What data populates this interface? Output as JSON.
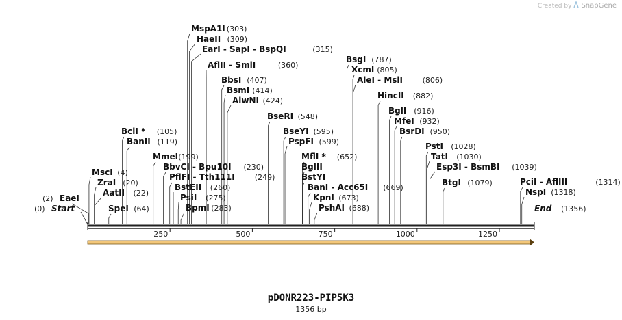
{
  "watermark": {
    "prefix": "Created by",
    "brand": "SnapGene"
  },
  "map": {
    "title": "pDONR223-PIP5K3",
    "size_label": "1356 bp",
    "length": 1356,
    "axis_ticks": [
      "250",
      "500",
      "750",
      "1000",
      "1250"
    ],
    "axis_tick_values": [
      250,
      500,
      750,
      1000,
      1250
    ],
    "arrow_color": "#f3c77a",
    "sites": [
      {
        "name": "MspA1I",
        "pos": 303,
        "pos_label": "(303)"
      },
      {
        "name": "HaeII",
        "pos": 309,
        "pos_label": "(309)"
      },
      {
        "name": "EarI  - SapI  - BspQI",
        "pos": 315,
        "pos_label": "(315)"
      },
      {
        "name": "AflII  - SmlI",
        "pos": 360,
        "pos_label": "(360)"
      },
      {
        "name": "BbsI",
        "pos": 407,
        "pos_label": "(407)"
      },
      {
        "name": "BsmI",
        "pos": 414,
        "pos_label": "(414)"
      },
      {
        "name": "AlwNI",
        "pos": 424,
        "pos_label": "(424)"
      },
      {
        "name": "BseRI",
        "pos": 548,
        "pos_label": "(548)"
      },
      {
        "name": "BclI *",
        "pos": 105,
        "pos_label": "(105)"
      },
      {
        "name": "BanII",
        "pos": 119,
        "pos_label": "(119)"
      },
      {
        "name": "MmeI",
        "pos": 199,
        "pos_label": "(199)"
      },
      {
        "name": "BbvCI  - Bpu10I",
        "pos": 230,
        "pos_label": "(230)"
      },
      {
        "name": "PflFI  - Tth111I",
        "pos": 249,
        "pos_label": "(249)"
      },
      {
        "name": "BstEII",
        "pos": 260,
        "pos_label": "(260)"
      },
      {
        "name": "PsiI",
        "pos": 275,
        "pos_label": "(275)"
      },
      {
        "name": "BpmI",
        "pos": 283,
        "pos_label": "(283)"
      },
      {
        "name": "MscI",
        "pos": 4,
        "pos_label": "(4)"
      },
      {
        "name": "ZraI",
        "pos": 20,
        "pos_label": "(20)"
      },
      {
        "name": "AatII",
        "pos": 22,
        "pos_label": "(22)"
      },
      {
        "name": "EaeI",
        "pos": 2,
        "pos_label": "(2)"
      },
      {
        "name": "SpeI",
        "pos": 64,
        "pos_label": "(64)"
      },
      {
        "name": "BseYI",
        "pos": 595,
        "pos_label": "(595)"
      },
      {
        "name": "PspFI",
        "pos": 599,
        "pos_label": "(599)"
      },
      {
        "name": "MflI *",
        "pos": 652,
        "pos_label": "(652)"
      },
      {
        "name": "BglII",
        "pos": 652,
        "pos_label": ""
      },
      {
        "name": "BstYI",
        "pos": 652,
        "pos_label": ""
      },
      {
        "name": "BanI  - Acc65I",
        "pos": 669,
        "pos_label": "(669)"
      },
      {
        "name": "KpnI",
        "pos": 673,
        "pos_label": "(673)"
      },
      {
        "name": "PshAI",
        "pos": 688,
        "pos_label": "(688)"
      },
      {
        "name": "BsgI",
        "pos": 787,
        "pos_label": "(787)"
      },
      {
        "name": "XcmI",
        "pos": 805,
        "pos_label": "(805)"
      },
      {
        "name": "AleI  - MslI",
        "pos": 806,
        "pos_label": "(806)"
      },
      {
        "name": "HincII",
        "pos": 882,
        "pos_label": "(882)"
      },
      {
        "name": "BglI",
        "pos": 916,
        "pos_label": "(916)"
      },
      {
        "name": "MfeI",
        "pos": 932,
        "pos_label": "(932)"
      },
      {
        "name": "BsrDI",
        "pos": 950,
        "pos_label": "(950)"
      },
      {
        "name": "PstI",
        "pos": 1028,
        "pos_label": "(1028)"
      },
      {
        "name": "TatI",
        "pos": 1030,
        "pos_label": "(1030)"
      },
      {
        "name": "Esp3I  - BsmBI",
        "pos": 1039,
        "pos_label": "(1039)"
      },
      {
        "name": "BtgI",
        "pos": 1079,
        "pos_label": "(1079)"
      },
      {
        "name": "PciI  - AflIII",
        "pos": 1314,
        "pos_label": "(1314)"
      },
      {
        "name": "NspI",
        "pos": 1318,
        "pos_label": "(1318)"
      }
    ],
    "start": {
      "name": "Start",
      "pos_label": "(0)"
    },
    "end": {
      "name": "End",
      "pos_label": "(1356)"
    }
  }
}
